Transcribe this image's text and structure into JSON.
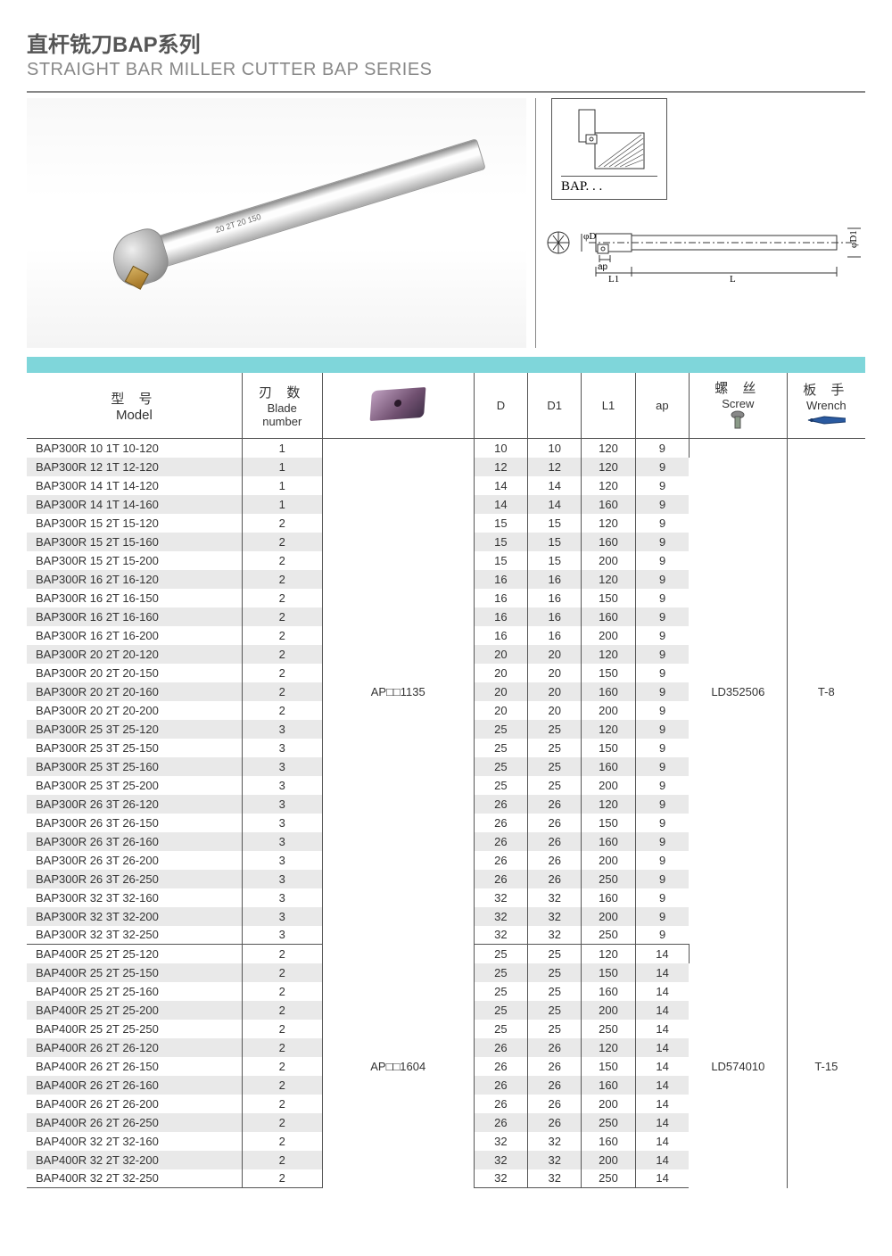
{
  "title_cn": "直杆铣刀BAP系列",
  "title_en": "STRAIGHT BAR MILLER CUTTER BAP SERIES",
  "photo_label": "20 2T 20 150",
  "diagram_label": "BAP. . .",
  "dim_labels": {
    "phiD": "φD",
    "phiD1": "φD1",
    "ap": "ap",
    "L1": "L1",
    "L": "L"
  },
  "headers": {
    "model_cn": "型  号",
    "model_en": "Model",
    "blade_cn": "刃  数",
    "blade_en1": "Blade",
    "blade_en2": "number",
    "d": "D",
    "d1": "D1",
    "l1": "L1",
    "ap": "ap",
    "screw_cn": "螺  丝",
    "screw_en": "Screw",
    "wrench_cn": "板  手",
    "wrench_en": "Wrench"
  },
  "groups": [
    {
      "insert": "AP□□1135",
      "screw": "LD352506",
      "wrench": "T-8",
      "rows": [
        {
          "model": "BAP300R 10 1T 10-120",
          "blade": 1,
          "d": 10,
          "d1": 10,
          "l1": 120,
          "ap": 9
        },
        {
          "model": "BAP300R 12 1T 12-120",
          "blade": 1,
          "d": 12,
          "d1": 12,
          "l1": 120,
          "ap": 9
        },
        {
          "model": "BAP300R 14 1T 14-120",
          "blade": 1,
          "d": 14,
          "d1": 14,
          "l1": 120,
          "ap": 9
        },
        {
          "model": "BAP300R 14 1T 14-160",
          "blade": 1,
          "d": 14,
          "d1": 14,
          "l1": 160,
          "ap": 9
        },
        {
          "model": "BAP300R 15 2T 15-120",
          "blade": 2,
          "d": 15,
          "d1": 15,
          "l1": 120,
          "ap": 9
        },
        {
          "model": "BAP300R 15 2T 15-160",
          "blade": 2,
          "d": 15,
          "d1": 15,
          "l1": 160,
          "ap": 9
        },
        {
          "model": "BAP300R 15 2T 15-200",
          "blade": 2,
          "d": 15,
          "d1": 15,
          "l1": 200,
          "ap": 9
        },
        {
          "model": "BAP300R 16 2T 16-120",
          "blade": 2,
          "d": 16,
          "d1": 16,
          "l1": 120,
          "ap": 9
        },
        {
          "model": "BAP300R 16 2T 16-150",
          "blade": 2,
          "d": 16,
          "d1": 16,
          "l1": 150,
          "ap": 9
        },
        {
          "model": "BAP300R 16 2T 16-160",
          "blade": 2,
          "d": 16,
          "d1": 16,
          "l1": 160,
          "ap": 9
        },
        {
          "model": "BAP300R 16 2T 16-200",
          "blade": 2,
          "d": 16,
          "d1": 16,
          "l1": 200,
          "ap": 9
        },
        {
          "model": "BAP300R 20 2T 20-120",
          "blade": 2,
          "d": 20,
          "d1": 20,
          "l1": 120,
          "ap": 9
        },
        {
          "model": "BAP300R 20 2T 20-150",
          "blade": 2,
          "d": 20,
          "d1": 20,
          "l1": 150,
          "ap": 9
        },
        {
          "model": "BAP300R 20 2T 20-160",
          "blade": 2,
          "d": 20,
          "d1": 20,
          "l1": 160,
          "ap": 9
        },
        {
          "model": "BAP300R 20 2T 20-200",
          "blade": 2,
          "d": 20,
          "d1": 20,
          "l1": 200,
          "ap": 9
        },
        {
          "model": "BAP300R 25 3T 25-120",
          "blade": 3,
          "d": 25,
          "d1": 25,
          "l1": 120,
          "ap": 9
        },
        {
          "model": "BAP300R 25 3T 25-150",
          "blade": 3,
          "d": 25,
          "d1": 25,
          "l1": 150,
          "ap": 9
        },
        {
          "model": "BAP300R 25 3T 25-160",
          "blade": 3,
          "d": 25,
          "d1": 25,
          "l1": 160,
          "ap": 9
        },
        {
          "model": "BAP300R 25 3T 25-200",
          "blade": 3,
          "d": 25,
          "d1": 25,
          "l1": 200,
          "ap": 9
        },
        {
          "model": "BAP300R 26 3T 26-120",
          "blade": 3,
          "d": 26,
          "d1": 26,
          "l1": 120,
          "ap": 9
        },
        {
          "model": "BAP300R 26 3T 26-150",
          "blade": 3,
          "d": 26,
          "d1": 26,
          "l1": 150,
          "ap": 9
        },
        {
          "model": "BAP300R 26 3T 26-160",
          "blade": 3,
          "d": 26,
          "d1": 26,
          "l1": 160,
          "ap": 9
        },
        {
          "model": "BAP300R 26 3T 26-200",
          "blade": 3,
          "d": 26,
          "d1": 26,
          "l1": 200,
          "ap": 9
        },
        {
          "model": "BAP300R 26 3T 26-250",
          "blade": 3,
          "d": 26,
          "d1": 26,
          "l1": 250,
          "ap": 9
        },
        {
          "model": "BAP300R 32 3T 32-160",
          "blade": 3,
          "d": 32,
          "d1": 32,
          "l1": 160,
          "ap": 9
        },
        {
          "model": "BAP300R 32 3T 32-200",
          "blade": 3,
          "d": 32,
          "d1": 32,
          "l1": 200,
          "ap": 9
        },
        {
          "model": "BAP300R 32 3T 32-250",
          "blade": 3,
          "d": 32,
          "d1": 32,
          "l1": 250,
          "ap": 9
        }
      ]
    },
    {
      "insert": "AP□□1604",
      "screw": "LD574010",
      "wrench": "T-15",
      "rows": [
        {
          "model": "BAP400R 25 2T 25-120",
          "blade": 2,
          "d": 25,
          "d1": 25,
          "l1": 120,
          "ap": 14
        },
        {
          "model": "BAP400R 25 2T 25-150",
          "blade": 2,
          "d": 25,
          "d1": 25,
          "l1": 150,
          "ap": 14
        },
        {
          "model": "BAP400R 25 2T 25-160",
          "blade": 2,
          "d": 25,
          "d1": 25,
          "l1": 160,
          "ap": 14
        },
        {
          "model": "BAP400R 25 2T 25-200",
          "blade": 2,
          "d": 25,
          "d1": 25,
          "l1": 200,
          "ap": 14
        },
        {
          "model": "BAP400R 25 2T 25-250",
          "blade": 2,
          "d": 25,
          "d1": 25,
          "l1": 250,
          "ap": 14
        },
        {
          "model": "BAP400R 26 2T 26-120",
          "blade": 2,
          "d": 26,
          "d1": 26,
          "l1": 120,
          "ap": 14
        },
        {
          "model": "BAP400R 26 2T 26-150",
          "blade": 2,
          "d": 26,
          "d1": 26,
          "l1": 150,
          "ap": 14
        },
        {
          "model": "BAP400R 26 2T 26-160",
          "blade": 2,
          "d": 26,
          "d1": 26,
          "l1": 160,
          "ap": 14
        },
        {
          "model": "BAP400R 26 2T 26-200",
          "blade": 2,
          "d": 26,
          "d1": 26,
          "l1": 200,
          "ap": 14
        },
        {
          "model": "BAP400R 26 2T 26-250",
          "blade": 2,
          "d": 26,
          "d1": 26,
          "l1": 250,
          "ap": 14
        },
        {
          "model": "BAP400R 32 2T 32-160",
          "blade": 2,
          "d": 32,
          "d1": 32,
          "l1": 160,
          "ap": 14
        },
        {
          "model": "BAP400R 32 2T 32-200",
          "blade": 2,
          "d": 32,
          "d1": 32,
          "l1": 200,
          "ap": 14
        },
        {
          "model": "BAP400R 32 2T 32-250",
          "blade": 2,
          "d": 32,
          "d1": 32,
          "l1": 250,
          "ap": 14
        }
      ]
    }
  ],
  "colors": {
    "banner": "#7fd6da",
    "alt_row": "#e9e9e9",
    "border": "#555555"
  }
}
